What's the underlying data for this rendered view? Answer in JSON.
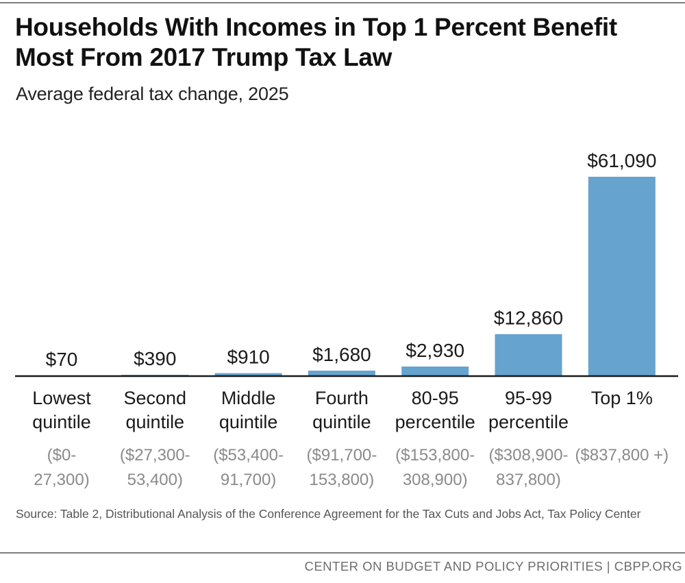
{
  "chart_data": {
    "type": "bar",
    "title": "Households With Incomes in Top 1 Percent Benefit Most From 2017 Trump Tax Law",
    "subtitle": "Average federal tax change, 2025",
    "categories": [
      {
        "line1": "Lowest",
        "line2": "quintile",
        "range1": "($0-",
        "range2": "27,300)"
      },
      {
        "line1": "Second",
        "line2": "quintile",
        "range1": "($27,300-",
        "range2": "53,400)"
      },
      {
        "line1": "Middle",
        "line2": "quintile",
        "range1": "($53,400-",
        "range2": "91,700)"
      },
      {
        "line1": "Fourth",
        "line2": "quintile",
        "range1": "($91,700-",
        "range2": "153,800)"
      },
      {
        "line1": "80-95",
        "line2": "percentile",
        "range1": "($153,800-",
        "range2": "308,900)"
      },
      {
        "line1": "95-99",
        "line2": "percentile",
        "range1": "($308,900-",
        "range2": "837,800)"
      },
      {
        "line1": "Top 1%",
        "line2": "",
        "range1": "($837,800 +)",
        "range2": ""
      }
    ],
    "values": [
      70,
      390,
      910,
      1680,
      2930,
      12860,
      61090
    ],
    "value_labels": [
      "$70",
      "$390",
      "$910",
      "$1,680",
      "$2,930",
      "$12,860",
      "$61,090"
    ],
    "ylim": [
      0,
      61090
    ],
    "bar_color": "#66a3cf",
    "grid": false,
    "legend": "none"
  },
  "source": "Source: Table 2, Distributional Analysis of the Conference Agreement for the Tax Cuts and Jobs Act, Tax Policy Center",
  "footer": "CENTER ON BUDGET AND POLICY PRIORITIES | CBPP.ORG"
}
